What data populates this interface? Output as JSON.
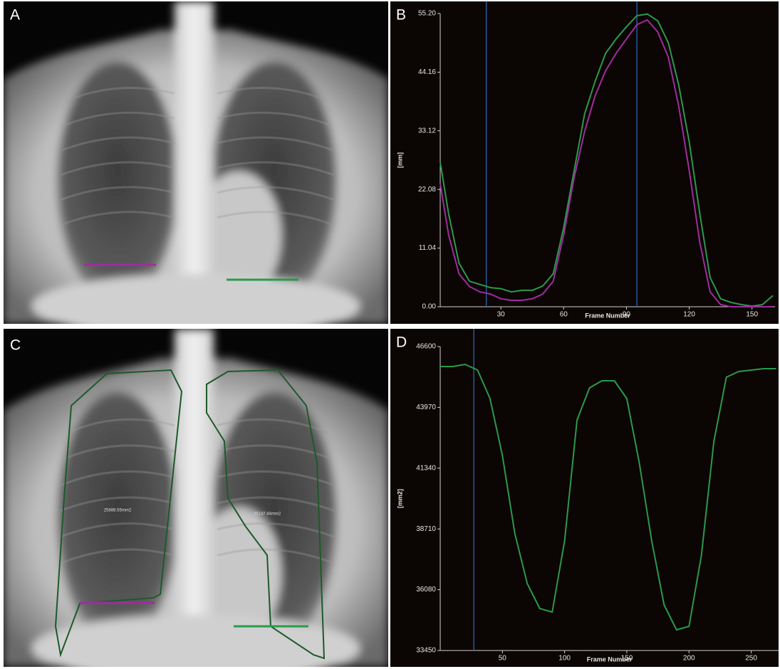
{
  "images": [
    {
      "label": "A"
    },
    {
      "label": "C",
      "annotations": [
        "25888.55mm2",
        "25147.44mm2"
      ]
    }
  ],
  "chart_data": [
    {
      "type": "line",
      "label": "B",
      "xlabel": "Frame Number",
      "ylabel": "[mm]",
      "x": [
        1,
        5,
        10,
        15,
        20,
        25,
        30,
        35,
        40,
        45,
        50,
        55,
        60,
        65,
        70,
        75,
        80,
        85,
        90,
        95,
        100,
        105,
        110,
        115,
        120,
        125,
        130,
        135,
        140,
        145,
        150,
        155,
        160
      ],
      "series": [
        {
          "color": "#2a9a4a",
          "values": [
            27.2,
            17.5,
            8.2,
            4.8,
            4.2,
            3.6,
            3.4,
            2.8,
            3.1,
            3.1,
            3.9,
            6.2,
            14.9,
            25.6,
            36.3,
            42.4,
            47.7,
            50.4,
            52.7,
            54.8,
            55.1,
            53.8,
            49.7,
            41.7,
            31,
            17.6,
            5.5,
            1.5,
            0.8,
            0.4,
            0.1,
            0.4,
            2.1
          ]
        },
        {
          "color": "#a02ca0",
          "values": [
            23.2,
            13.5,
            6.2,
            3.8,
            2.8,
            2.4,
            1.5,
            1.2,
            1.2,
            1.5,
            2.4,
            4.8,
            13.5,
            24.3,
            33,
            39.7,
            44.4,
            47.7,
            50.4,
            53.1,
            54,
            51.7,
            47,
            37.7,
            25.6,
            12.2,
            2.8,
            0.4,
            0,
            0,
            0,
            0,
            0
          ]
        }
      ],
      "markers_x": [
        23,
        95
      ],
      "marker_color": "#2a64b4",
      "xlim": [
        1,
        161
      ],
      "xticks": [
        30,
        60,
        90,
        120,
        150
      ],
      "ylim": [
        0,
        55.2
      ],
      "yticks": [
        {
          "value": 0,
          "label": "0.00"
        },
        11.04,
        22.08,
        33.12,
        44.16,
        {
          "value": 55.2,
          "label": "55.20"
        }
      ]
    },
    {
      "type": "line",
      "label": "D",
      "xlabel": "Frame Number",
      "ylabel": "[mm2]",
      "x": [
        0,
        10,
        20,
        30,
        40,
        50,
        60,
        70,
        80,
        90,
        100,
        110,
        120,
        130,
        140,
        150,
        160,
        170,
        180,
        190,
        200,
        210,
        220,
        230,
        240,
        250,
        260,
        270
      ],
      "series": [
        {
          "color": "#2a9a4a",
          "values": [
            45738,
            45738,
            45830,
            45584,
            44352,
            41888,
            38500,
            36344,
            35266,
            35112,
            38192,
            43428,
            44814,
            45122,
            45122,
            44352,
            41580,
            38192,
            35420,
            34342,
            34496,
            37576,
            42504,
            45276,
            45522,
            45584,
            45646,
            45646
          ]
        }
      ],
      "markers_x": [
        27
      ],
      "marker_color": "#2a64b4",
      "xlim": [
        0,
        272
      ],
      "xticks": [
        50,
        100,
        150,
        200,
        250
      ],
      "ylim": [
        33450,
        46600
      ],
      "yticks": [
        33450,
        36080,
        38710,
        41340,
        43970,
        46600
      ]
    }
  ]
}
